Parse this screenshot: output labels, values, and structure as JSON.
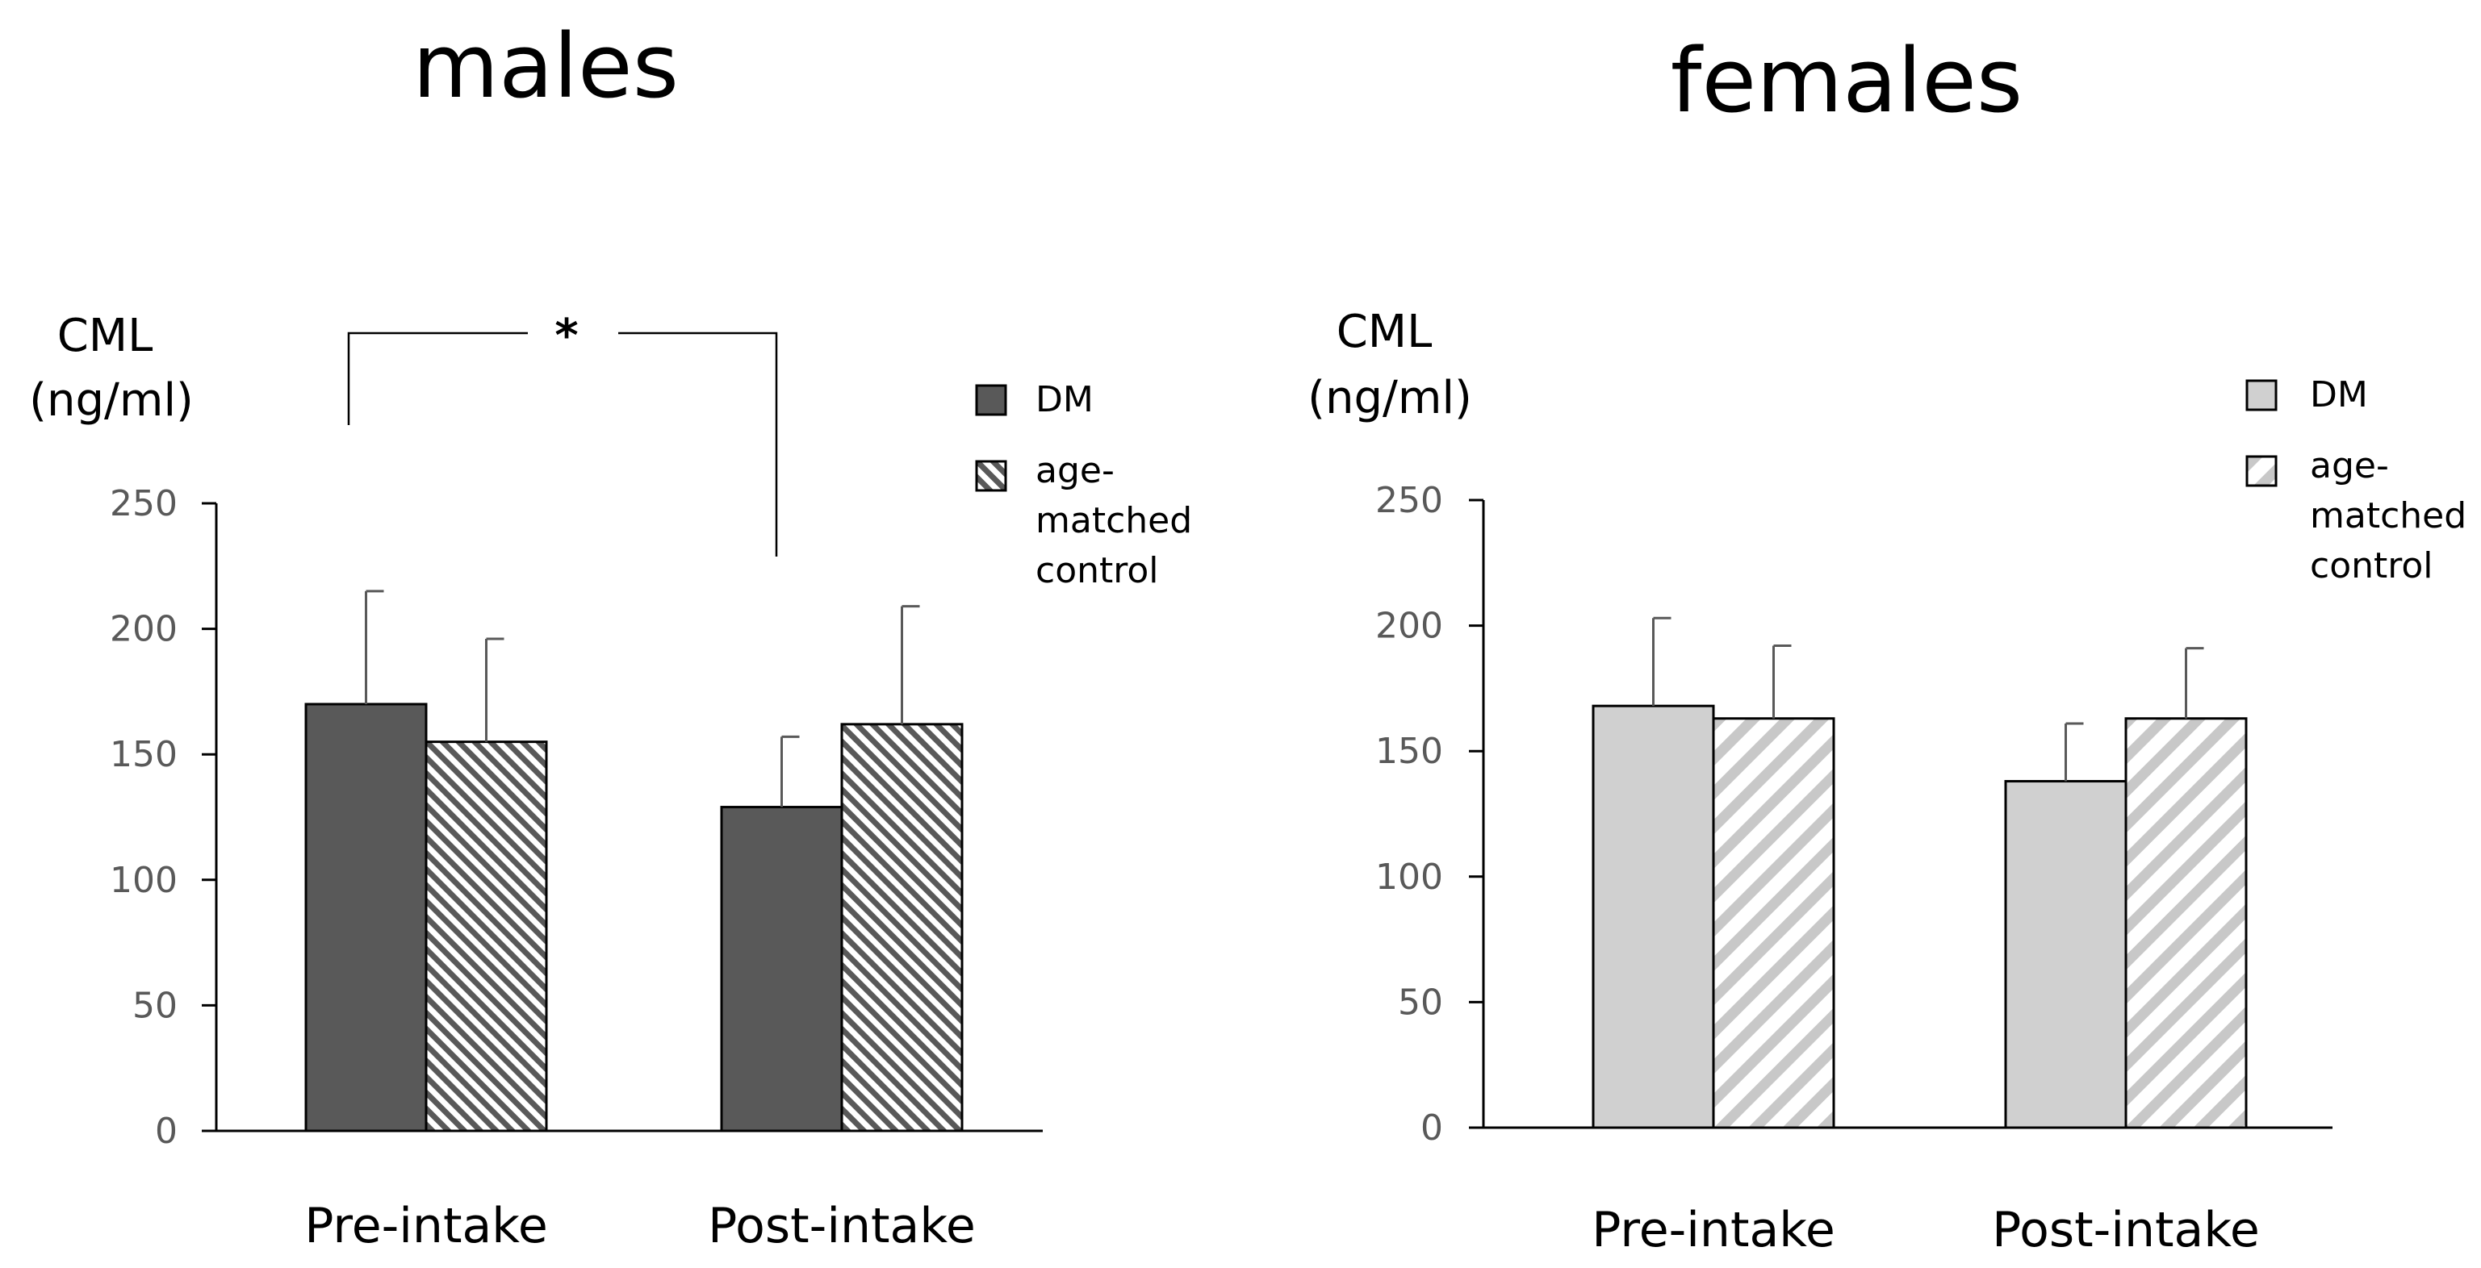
{
  "chart_data": [
    {
      "type": "bar",
      "title": "males",
      "ylabel_line1": "CML",
      "ylabel_line2": "(ng/ml)",
      "categories": [
        "Pre-intake",
        "Post-intake"
      ],
      "ylim": [
        0,
        250
      ],
      "yticks": [
        "0",
        "50",
        "100",
        "150",
        "200",
        "250"
      ],
      "series": [
        {
          "name": "DM",
          "values": [
            170,
            129
          ],
          "errors": [
            45,
            28
          ],
          "color": "#595959",
          "pattern": "solid"
        },
        {
          "name": "age-matched control",
          "legend_lines": [
            "age-",
            "matched",
            "control"
          ],
          "values": [
            155,
            162
          ],
          "errors": [
            41,
            47
          ],
          "color": "#595959",
          "pattern": "dense-hatch"
        }
      ],
      "significance": {
        "label": "*",
        "between": [
          "Pre-intake DM",
          "Post-intake DM"
        ]
      },
      "legend": "top-right",
      "grid": false
    },
    {
      "type": "bar",
      "title": "females",
      "ylabel_line1": "CML",
      "ylabel_line2": "(ng/ml)",
      "categories": [
        "Pre-intake",
        "Post-intake"
      ],
      "ylim": [
        0,
        250
      ],
      "yticks": [
        "0",
        "50",
        "100",
        "150",
        "200",
        "250"
      ],
      "series": [
        {
          "name": "DM",
          "values": [
            168,
            138
          ],
          "errors": [
            35,
            23
          ],
          "color": "#d0d0d0",
          "pattern": "solid"
        },
        {
          "name": "age-matched control",
          "legend_lines": [
            "age-",
            "matched",
            "control"
          ],
          "values": [
            163,
            163
          ],
          "errors": [
            29,
            28
          ],
          "color": "#c8c8c8",
          "pattern": "wide-hatch"
        }
      ],
      "legend": "top-right",
      "grid": false
    }
  ]
}
